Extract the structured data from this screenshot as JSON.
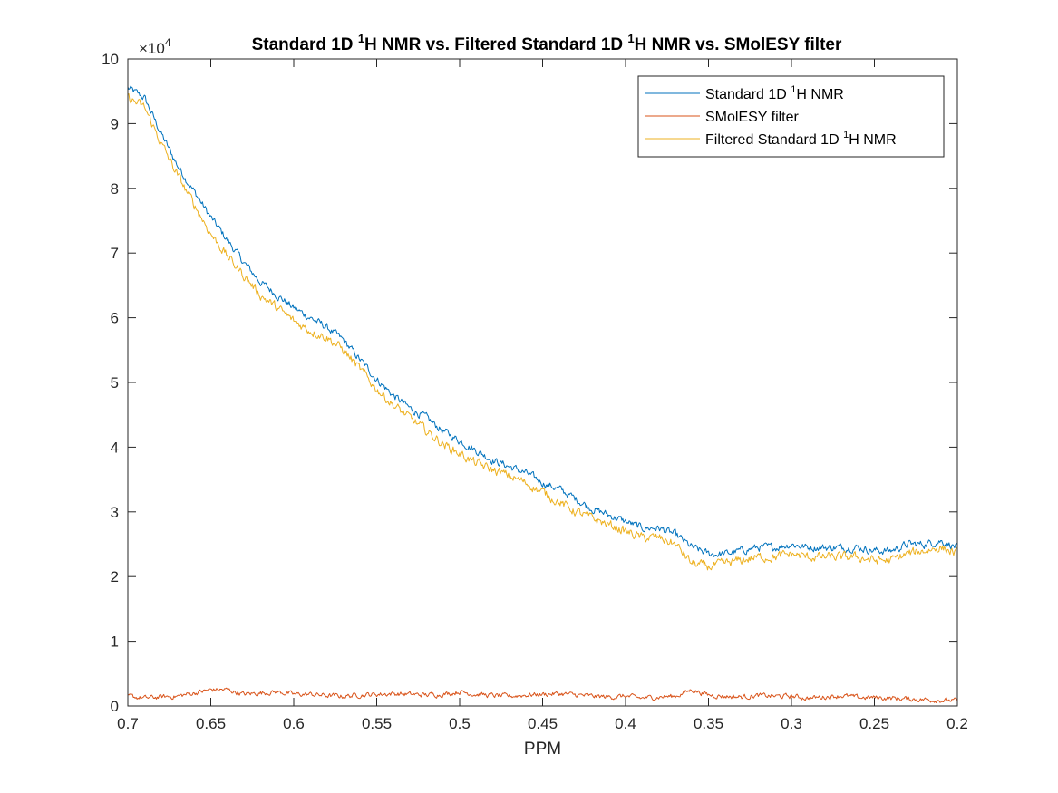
{
  "chart_data": {
    "type": "line",
    "title": {
      "part1": "Standard 1D ",
      "sup1": "1",
      "part2": "H NMR vs. Filtered Standard 1D ",
      "sup2": "1",
      "part3": "H NMR vs. SMolESY filter"
    },
    "xlabel": "PPM",
    "ylabel": "",
    "x_reversed": true,
    "xlim": [
      0.2,
      0.7
    ],
    "ylim": [
      0,
      100000
    ],
    "y_multiplier": {
      "base": "×10",
      "exponent": "4"
    },
    "x_ticks": [
      0.7,
      0.65,
      0.6,
      0.55,
      0.5,
      0.45,
      0.4,
      0.35,
      0.3,
      0.25,
      0.2
    ],
    "x_tick_labels": [
      "0.7",
      "0.65",
      "0.6",
      "0.55",
      "0.5",
      "0.45",
      "0.4",
      "0.35",
      "0.3",
      "0.25",
      "0.2"
    ],
    "y_ticks": [
      0,
      10000,
      20000,
      30000,
      40000,
      50000,
      60000,
      70000,
      80000,
      90000,
      100000
    ],
    "y_tick_labels": [
      "0",
      "1",
      "2",
      "3",
      "4",
      "5",
      "6",
      "7",
      "8",
      "9",
      "10"
    ],
    "grid": false,
    "legend_position": "top-right",
    "series": [
      {
        "name": {
          "prefix": "Standard 1D ",
          "sup": "1",
          "suffix": "H NMR"
        },
        "color": "#0072BD",
        "x": [
          0.7,
          0.69,
          0.68,
          0.67,
          0.66,
          0.65,
          0.64,
          0.63,
          0.62,
          0.61,
          0.6,
          0.59,
          0.58,
          0.57,
          0.56,
          0.55,
          0.54,
          0.53,
          0.52,
          0.51,
          0.5,
          0.49,
          0.48,
          0.47,
          0.46,
          0.45,
          0.44,
          0.43,
          0.42,
          0.41,
          0.4,
          0.39,
          0.38,
          0.37,
          0.36,
          0.35,
          0.34,
          0.33,
          0.32,
          0.31,
          0.3,
          0.29,
          0.28,
          0.27,
          0.26,
          0.25,
          0.24,
          0.23,
          0.22,
          0.21,
          0.2
        ],
        "y": [
          95500,
          94000,
          88500,
          83500,
          79500,
          75500,
          72000,
          68500,
          65500,
          63500,
          61500,
          60000,
          58500,
          56500,
          53500,
          50500,
          48000,
          46000,
          44500,
          42500,
          41000,
          39500,
          38000,
          37000,
          36000,
          34500,
          33500,
          32000,
          30500,
          29500,
          28500,
          27500,
          27500,
          26500,
          24500,
          23500,
          23500,
          24000,
          24500,
          24500,
          25000,
          24500,
          24500,
          24500,
          24500,
          24000,
          24000,
          25000,
          25000,
          25500,
          24500
        ]
      },
      {
        "name": {
          "prefix": "SMolESY filter",
          "sup": "",
          "suffix": ""
        },
        "color": "#D95319",
        "x": [
          0.7,
          0.69,
          0.68,
          0.67,
          0.66,
          0.65,
          0.64,
          0.63,
          0.62,
          0.61,
          0.6,
          0.59,
          0.58,
          0.57,
          0.56,
          0.55,
          0.54,
          0.53,
          0.52,
          0.51,
          0.5,
          0.49,
          0.48,
          0.47,
          0.46,
          0.45,
          0.44,
          0.43,
          0.42,
          0.41,
          0.4,
          0.39,
          0.38,
          0.37,
          0.36,
          0.35,
          0.34,
          0.33,
          0.32,
          0.31,
          0.3,
          0.29,
          0.28,
          0.27,
          0.26,
          0.25,
          0.24,
          0.23,
          0.22,
          0.21,
          0.2
        ],
        "y": [
          1500,
          1200,
          1400,
          1500,
          2000,
          2500,
          2500,
          1800,
          2000,
          2200,
          1800,
          1800,
          1600,
          1500,
          1700,
          1800,
          1900,
          1800,
          1700,
          1800,
          2200,
          1800,
          1600,
          1500,
          1700,
          1800,
          1900,
          1700,
          1500,
          1400,
          1500,
          1200,
          1400,
          1500,
          2500,
          1700,
          1500,
          1400,
          1600,
          1500,
          1500,
          1200,
          1400,
          1600,
          1300,
          1300,
          1200,
          1100,
          1000,
          900,
          800
        ]
      },
      {
        "name": {
          "prefix": "Filtered Standard 1D ",
          "sup": "1",
          "suffix": "H NMR"
        },
        "color": "#EDB120",
        "x": [
          0.7,
          0.69,
          0.68,
          0.67,
          0.66,
          0.65,
          0.64,
          0.63,
          0.62,
          0.61,
          0.6,
          0.59,
          0.58,
          0.57,
          0.56,
          0.55,
          0.54,
          0.53,
          0.52,
          0.51,
          0.5,
          0.49,
          0.48,
          0.47,
          0.46,
          0.45,
          0.44,
          0.43,
          0.42,
          0.41,
          0.4,
          0.39,
          0.38,
          0.37,
          0.36,
          0.35,
          0.34,
          0.33,
          0.32,
          0.31,
          0.3,
          0.29,
          0.28,
          0.27,
          0.26,
          0.25,
          0.24,
          0.23,
          0.22,
          0.21,
          0.2
        ],
        "y": [
          94000,
          92500,
          87000,
          82000,
          77500,
          73000,
          69500,
          66500,
          63500,
          61500,
          59500,
          58000,
          57000,
          55000,
          52000,
          49000,
          46500,
          44500,
          42500,
          40500,
          39000,
          37500,
          36500,
          35500,
          34500,
          33000,
          31500,
          30000,
          29000,
          28000,
          27000,
          26000,
          26000,
          25000,
          22000,
          21500,
          22000,
          22500,
          23000,
          23000,
          23500,
          23000,
          23000,
          23000,
          23000,
          22500,
          22500,
          23500,
          24000,
          24500,
          23500
        ]
      }
    ]
  }
}
